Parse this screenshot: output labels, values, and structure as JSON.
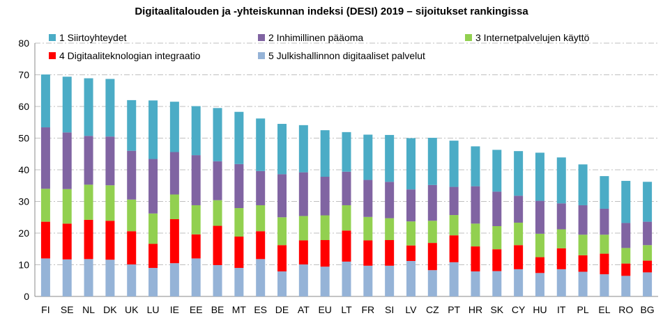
{
  "chart_data": {
    "type": "bar",
    "stacked": true,
    "title": "Digitaalitalouden ja -yhteiskunnan indeksi (DESI) 2019 – sijoitukset rankingissa",
    "xlabel": "",
    "ylabel": "",
    "ylim": [
      0,
      80
    ],
    "yticks": [
      0,
      10,
      20,
      30,
      40,
      50,
      60,
      70,
      80
    ],
    "grid": true,
    "categories": [
      "FI",
      "SE",
      "NL",
      "DK",
      "UK",
      "LU",
      "IE",
      "EE",
      "BE",
      "MT",
      "ES",
      "DE",
      "AT",
      "EU",
      "LT",
      "FR",
      "SI",
      "LV",
      "CZ",
      "PT",
      "HR",
      "SK",
      "CY",
      "HU",
      "IT",
      "PL",
      "EL",
      "RO",
      "BG"
    ],
    "series": [
      {
        "name": "5 Julkishallinnon digitaaliset palvelut",
        "color": "#95B3D7",
        "values": [
          12,
          11.7,
          11.8,
          11.6,
          10.1,
          9,
          10.5,
          12,
          9.9,
          9,
          11.8,
          7.9,
          10.1,
          9.4,
          11,
          9.7,
          9.7,
          11.2,
          8.3,
          10.8,
          7.9,
          8,
          8.6,
          7.4,
          8.6,
          7.8,
          7,
          6.5,
          7.6
        ]
      },
      {
        "name": "4 Digitaaliteknologian integraatio",
        "color": "#FF0000",
        "values": [
          11.6,
          11.3,
          12.4,
          12.3,
          10.5,
          7.6,
          13.9,
          7.6,
          12.4,
          9.9,
          8.8,
          8.3,
          7.6,
          8.4,
          9.8,
          8,
          8.1,
          4.9,
          8.6,
          8.5,
          7.9,
          6.9,
          7.6,
          5,
          6.6,
          5.2,
          6.5,
          3.9,
          3.7
        ]
      },
      {
        "name": "3 Internetpalvelujen käyttö",
        "color": "#92D050",
        "values": [
          10.4,
          10.9,
          11.1,
          11.2,
          10,
          9.6,
          7.8,
          9.2,
          8.1,
          9,
          8.2,
          8.8,
          7.7,
          7.8,
          8,
          7.4,
          6.9,
          7.6,
          7,
          6.4,
          7.2,
          7.3,
          7.1,
          7.4,
          6,
          6.5,
          6,
          4.9,
          4.9
        ]
      },
      {
        "name": "2 Inhimillinen pääoma",
        "color": "#8064A2",
        "values": [
          19.4,
          17.9,
          15.4,
          15.4,
          15.4,
          17.2,
          13.4,
          15.8,
          12.3,
          13.9,
          10.8,
          13.6,
          13.8,
          12.2,
          10.6,
          11.7,
          11.5,
          10.1,
          11.3,
          8.9,
          11.8,
          10.9,
          8.5,
          10.4,
          8.2,
          9.3,
          8.2,
          7.9,
          7.4
        ]
      },
      {
        "name": "1 Siirtoyhteydet",
        "color": "#4BACC6",
        "values": [
          16.7,
          17.6,
          18.2,
          18.2,
          16,
          18.5,
          15.9,
          15.5,
          16.8,
          16.5,
          16.6,
          15.9,
          14.9,
          14.7,
          12.5,
          14.3,
          14.8,
          16.2,
          14.9,
          14.6,
          12.6,
          13.2,
          14.1,
          15.2,
          14.5,
          12.9,
          10.3,
          13.3,
          12.6
        ]
      }
    ],
    "legend": [
      {
        "label": "1 Siirtoyhteydet",
        "color": "#4BACC6"
      },
      {
        "label": "2 Inhimillinen pääoma",
        "color": "#8064A2"
      },
      {
        "label": "3 Internetpalvelujen käyttö",
        "color": "#92D050"
      },
      {
        "label": "4 Digitaaliteknologian integraatio",
        "color": "#FF0000"
      },
      {
        "label": "5 Julkishallinnon digitaaliset palvelut",
        "color": "#95B3D7"
      }
    ],
    "legend_position": "top-left, inside plot"
  }
}
